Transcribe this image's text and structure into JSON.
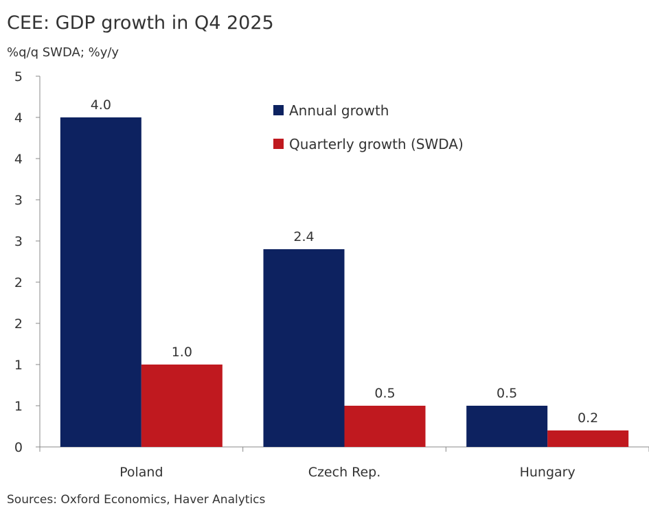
{
  "chart_data": {
    "type": "bar",
    "title": "CEE: GDP growth in Q4 2025",
    "ylabel": "%q/q SWDA; %y/y",
    "source": "Sources: Oxford Economics, Haver Analytics",
    "categories": [
      "Poland",
      "Czech Rep.",
      "Hungary"
    ],
    "series": [
      {
        "name": "Annual growth",
        "color": "#0d2260",
        "values": [
          4.0,
          2.4,
          0.5
        ],
        "labels": [
          "4.0",
          "2.4",
          "0.5"
        ]
      },
      {
        "name": "Quarterly growth (SWDA)",
        "color": "#c0191f",
        "values": [
          1.0,
          0.5,
          0.2
        ],
        "labels": [
          "1.0",
          "0.5",
          "0.2"
        ]
      }
    ],
    "ylim": [
      0,
      4.5
    ],
    "yticks": [
      0,
      0.5,
      1,
      1.5,
      2,
      2.5,
      3,
      3.5,
      4,
      4.5
    ],
    "ytick_labels": [
      "0",
      "1",
      "1",
      "2",
      "2",
      "3",
      "3",
      "4",
      "4",
      "5"
    ],
    "grid": false,
    "legend_position": "top-right"
  }
}
